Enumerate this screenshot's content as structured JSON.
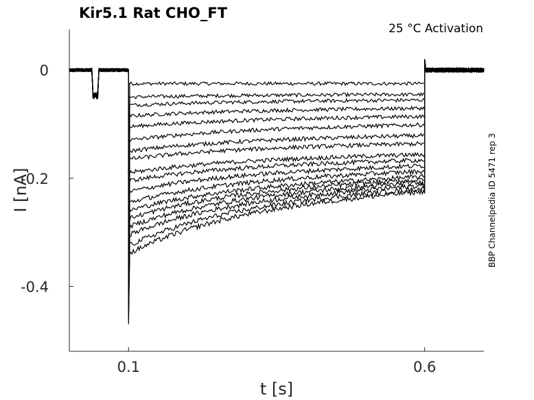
{
  "chart_data": {
    "type": "line",
    "title": "Kir5.1  Rat  CHO_FT",
    "annotation": "25 °C  Activation",
    "side_label": "BBP Channelpedia ID 5471 rep 3",
    "xlabel": "t [s]",
    "ylabel": "I [nA]",
    "xlim": [
      0.0,
      0.7
    ],
    "ylim": [
      -0.52,
      0.075
    ],
    "x_ticks": [
      0.1,
      0.6
    ],
    "x_tick_labels": [
      "0.1",
      "0.6"
    ],
    "y_ticks": [
      0,
      -0.2,
      -0.4
    ],
    "y_tick_labels": [
      "0",
      "-0.2",
      "-0.4"
    ],
    "grid": false,
    "legend": "none",
    "step_window": [
      0.1,
      0.6
    ],
    "prepulse_window": [
      0.04,
      0.048
    ],
    "prepulse_level": -0.05,
    "capacitive_spike_min": -0.47,
    "series": [
      {
        "values": [
          -0.025,
          -0.025
        ]
      },
      {
        "values": [
          -0.05,
          -0.045
        ]
      },
      {
        "values": [
          -0.065,
          -0.055
        ]
      },
      {
        "values": [
          -0.085,
          -0.07
        ]
      },
      {
        "values": [
          -0.105,
          -0.085
        ]
      },
      {
        "values": [
          -0.13,
          -0.1
        ]
      },
      {
        "values": [
          -0.15,
          -0.12
        ]
      },
      {
        "values": [
          -0.165,
          -0.135
        ]
      },
      {
        "values": [
          -0.19,
          -0.155
        ]
      },
      {
        "values": [
          -0.205,
          -0.165
        ]
      },
      {
        "values": [
          -0.225,
          -0.175
        ]
      },
      {
        "values": [
          -0.245,
          -0.185
        ]
      },
      {
        "values": [
          -0.26,
          -0.195
        ]
      },
      {
        "values": [
          -0.275,
          -0.2
        ]
      },
      {
        "values": [
          -0.29,
          -0.205
        ]
      },
      {
        "values": [
          -0.305,
          -0.21
        ]
      },
      {
        "values": [
          -0.325,
          -0.215
        ]
      },
      {
        "values": [
          -0.34,
          -0.22
        ]
      }
    ]
  }
}
